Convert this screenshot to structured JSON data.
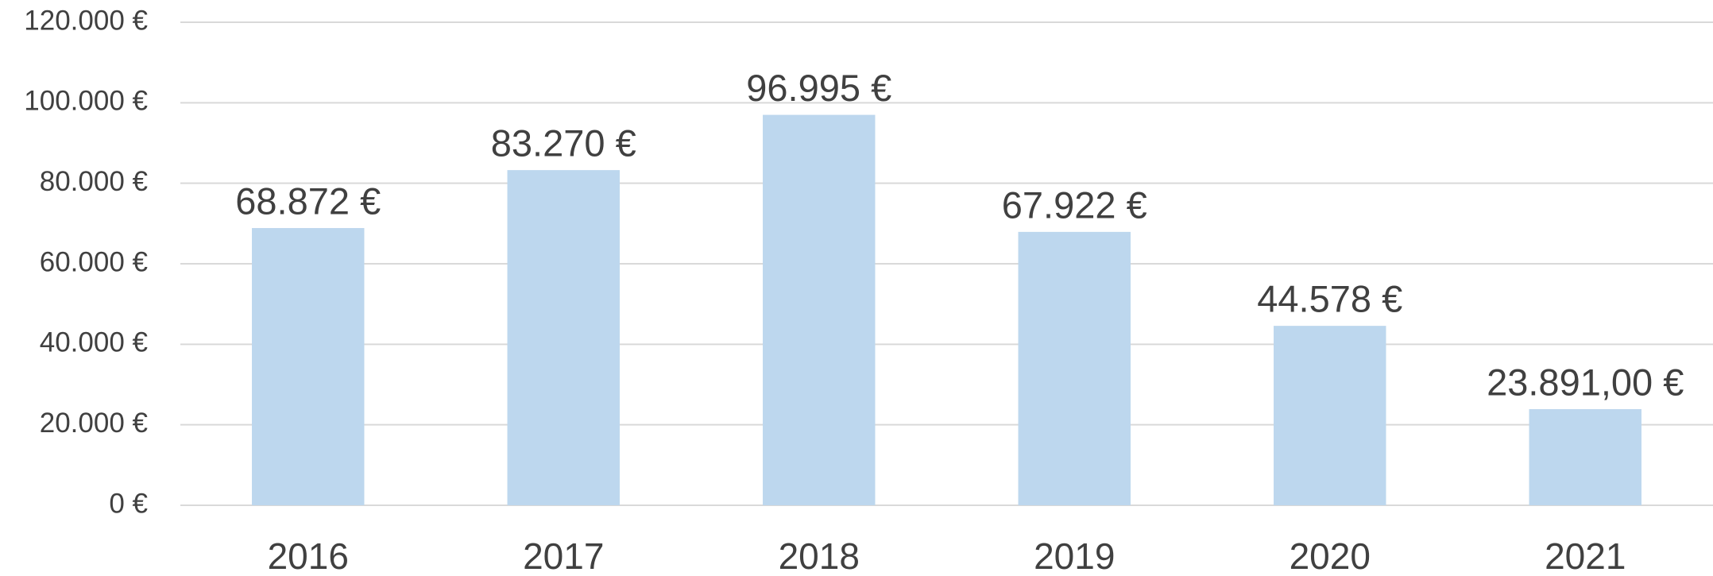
{
  "chart_data": {
    "type": "bar",
    "categories": [
      "2016",
      "2017",
      "2018",
      "2019",
      "2020",
      "2021"
    ],
    "values": [
      68872,
      83270,
      96995,
      67922,
      44578,
      23891
    ],
    "value_labels": [
      "68.872 €",
      "83.270 €",
      "96.995 €",
      "67.922 €",
      "44.578 €",
      "23.891,00 €"
    ],
    "color": "#bdd7ee",
    "ylim": [
      0,
      120000
    ],
    "yticks": [
      {
        "value": 0,
        "label": "0 €"
      },
      {
        "value": 20000,
        "label": "20.000 €"
      },
      {
        "value": 40000,
        "label": "40.000 €"
      },
      {
        "value": 60000,
        "label": "60.000 €"
      },
      {
        "value": 80000,
        "label": "80.000 €"
      },
      {
        "value": 100000,
        "label": "100.000 €"
      },
      {
        "value": 120000,
        "label": "120.000 €"
      }
    ],
    "grid": true
  }
}
